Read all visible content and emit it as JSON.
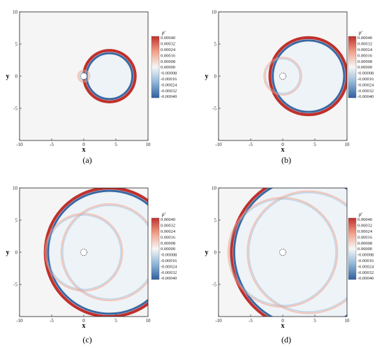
{
  "figure": {
    "panels": [
      "(a)",
      "(b)",
      "(c)",
      "(d)"
    ]
  },
  "colormap": {
    "neg_max": "#2f5f9e",
    "neg_mid": "#8fb6d8",
    "zero": "#f6f7f7",
    "pos_mid": "#f2a189",
    "pos_max": "#c0302c",
    "body": "#f4f5f4"
  },
  "chart_data": [
    {
      "type": "heatmap",
      "panel_label": "(a)",
      "xlabel": "x",
      "ylabel": "y",
      "xlim": [
        -10,
        10
      ],
      "ylim": [
        -10,
        10
      ],
      "xticks": [
        -10,
        -5,
        0,
        5,
        10
      ],
      "yticks": [
        -5,
        0,
        5,
        10
      ],
      "cylinder": {
        "x": 0,
        "y": 0,
        "r": 0.5
      },
      "colorbar": {
        "title": "p'",
        "levels": [
          "0.00040",
          "0.00032",
          "0.00024",
          "0.00016",
          "0.00008",
          "0.00000",
          "-0.00008",
          "-0.00016",
          "-0.00024",
          "-0.00032",
          "-0.00040"
        ]
      },
      "waves": [
        {
          "cx": 4,
          "cy": 0,
          "r": 4.0,
          "amplitude": 0.0004
        },
        {
          "cx": 0,
          "cy": 0,
          "r": 0.9,
          "amplitude": 0.00022
        }
      ]
    },
    {
      "type": "heatmap",
      "panel_label": "(b)",
      "xlabel": "x",
      "ylabel": "y",
      "xlim": [
        -10,
        10
      ],
      "ylim": [
        -10,
        10
      ],
      "xticks": [
        -10,
        -5,
        0,
        5,
        10
      ],
      "yticks": [
        -5,
        0,
        5,
        10
      ],
      "cylinder": {
        "x": 0,
        "y": 0,
        "r": 0.5
      },
      "colorbar": {
        "title": "p'",
        "levels": [
          "0.00040",
          "0.00032",
          "0.00024",
          "0.00016",
          "0.00008",
          "0.00000",
          "-0.00008",
          "-0.00016",
          "-0.00024",
          "-0.00032",
          "-0.00040"
        ]
      },
      "waves": [
        {
          "cx": 4,
          "cy": 0,
          "r": 6.0,
          "amplitude": 0.0004
        },
        {
          "cx": 0,
          "cy": 0,
          "r": 2.9,
          "amplitude": 0.00012
        }
      ]
    },
    {
      "type": "heatmap",
      "panel_label": "(c)",
      "xlabel": "x",
      "ylabel": "y",
      "xlim": [
        -10,
        10
      ],
      "ylim": [
        -10,
        10
      ],
      "xticks": [
        -10,
        -5,
        0,
        5,
        10
      ],
      "yticks": [
        -5,
        0,
        5,
        10
      ],
      "cylinder": {
        "x": 0,
        "y": 0,
        "r": 0.5
      },
      "colorbar": {
        "title": "p'",
        "levels": [
          "0.00040",
          "0.00032",
          "0.00024",
          "0.00016",
          "0.00008",
          "0.00000",
          "-0.00008",
          "-0.00016",
          "-0.00024",
          "-0.00032",
          "-0.00040"
        ]
      },
      "waves": [
        {
          "cx": 4,
          "cy": 0,
          "r": 10.0,
          "amplitude": 0.0004
        },
        {
          "cx": 0,
          "cy": 0,
          "r": 6.0,
          "amplitude": 8e-05
        },
        {
          "cx": 4,
          "cy": 0,
          "r": 7.5,
          "amplitude": 8e-05
        }
      ]
    },
    {
      "type": "heatmap",
      "panel_label": "(d)",
      "xlabel": "x",
      "ylabel": "y",
      "xlim": [
        -10,
        10
      ],
      "ylim": [
        -10,
        10
      ],
      "xticks": [
        -10,
        -5,
        0,
        5,
        10
      ],
      "yticks": [
        -5,
        0,
        5,
        10
      ],
      "cylinder": {
        "x": 0,
        "y": 0,
        "r": 0.5
      },
      "colorbar": {
        "title": "p'",
        "levels": [
          "0.00040",
          "0.00032",
          "0.00024",
          "0.00016",
          "0.00008",
          "0.00000",
          "-0.00008",
          "-0.00016",
          "-0.00024",
          "-0.00032",
          "-0.00040"
        ]
      },
      "waves": [
        {
          "cx": 4,
          "cy": 0,
          "r": 12.0,
          "amplitude": 0.0004
        },
        {
          "cx": 0,
          "cy": 0,
          "r": 8.5,
          "amplitude": 8e-05
        },
        {
          "cx": 4,
          "cy": 0,
          "r": 9.5,
          "amplitude": 8e-05
        }
      ]
    }
  ]
}
